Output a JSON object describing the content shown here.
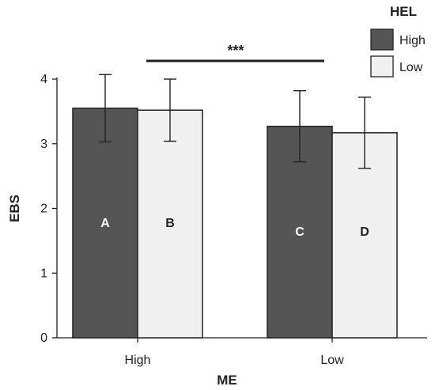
{
  "chart_data": {
    "type": "bar",
    "xlabel": "ME",
    "ylabel": "EBS",
    "ylim": [
      0,
      4
    ],
    "yticks": [
      0,
      1,
      2,
      3,
      4
    ],
    "categories": [
      "High",
      "Low"
    ],
    "legend": {
      "title": "HEL",
      "placement": "top-right"
    },
    "series": [
      {
        "name": "High",
        "color": "#555555",
        "values": [
          3.55,
          3.27
        ],
        "err": [
          0.52,
          0.55
        ],
        "labels": [
          "A",
          "C"
        ],
        "label_color": "#ffffff"
      },
      {
        "name": "Low",
        "color": "#f0f0f0",
        "values": [
          3.52,
          3.17
        ],
        "err": [
          0.48,
          0.55
        ],
        "labels": [
          "B",
          "D"
        ],
        "label_color": "#222222"
      }
    ],
    "annotation": {
      "text": "***",
      "between": [
        "High",
        "Low"
      ]
    },
    "grid": false
  }
}
